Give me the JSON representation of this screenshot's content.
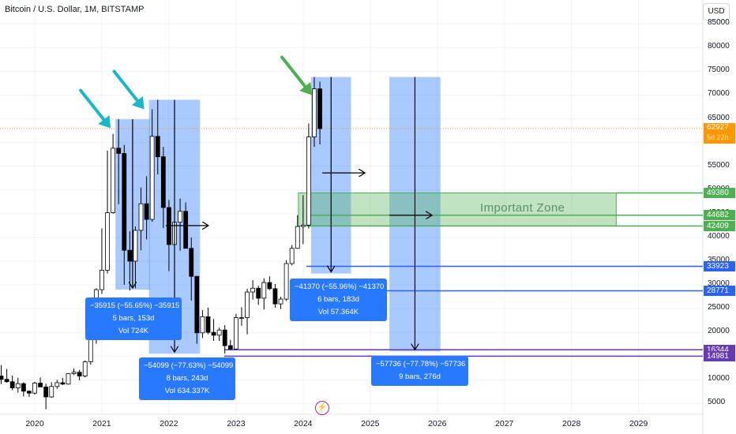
{
  "header": {
    "title": "Bitcoin / U.S. Dollar, 1M, BITSTAMP",
    "currency_button": "USD"
  },
  "chart_data": {
    "type": "candlestick",
    "title": "Bitcoin / U.S. Dollar, 1M, BITSTAMP",
    "xlabel": "",
    "ylabel": "",
    "ylim": [
      0,
      89000
    ],
    "x_ticks": [
      "2020",
      "2021",
      "2022",
      "2023",
      "2024",
      "2025",
      "2026",
      "2027",
      "2028",
      "2029"
    ],
    "y_ticks": [
      5000,
      10000,
      15000,
      20000,
      25000,
      30000,
      35000,
      40000,
      45000,
      50000,
      55000,
      60000,
      65000,
      70000,
      75000,
      80000,
      85000
    ],
    "candle_style": {
      "up_fill": "#ffffff",
      "down_fill": "#000000",
      "outline": "#000000"
    },
    "candles": [
      {
        "date": "2019-05",
        "o": 5300,
        "h": 9100,
        "l": 5200,
        "c": 8600
      },
      {
        "date": "2019-06",
        "o": 8600,
        "h": 13800,
        "l": 7500,
        "c": 10800
      },
      {
        "date": "2019-07",
        "o": 10800,
        "h": 13100,
        "l": 9100,
        "c": 10100
      },
      {
        "date": "2019-08",
        "o": 10100,
        "h": 12300,
        "l": 9400,
        "c": 9600
      },
      {
        "date": "2019-09",
        "o": 9600,
        "h": 10900,
        "l": 7800,
        "c": 8300
      },
      {
        "date": "2019-10",
        "o": 8300,
        "h": 10400,
        "l": 7300,
        "c": 9200
      },
      {
        "date": "2019-11",
        "o": 9200,
        "h": 9500,
        "l": 6500,
        "c": 7600
      },
      {
        "date": "2019-12",
        "o": 7600,
        "h": 7800,
        "l": 6400,
        "c": 7200
      },
      {
        "date": "2020-01",
        "o": 7200,
        "h": 9600,
        "l": 6900,
        "c": 9300
      },
      {
        "date": "2020-02",
        "o": 9300,
        "h": 10500,
        "l": 8500,
        "c": 8500
      },
      {
        "date": "2020-03",
        "o": 8500,
        "h": 9200,
        "l": 3800,
        "c": 6400
      },
      {
        "date": "2020-04",
        "o": 6400,
        "h": 9500,
        "l": 6200,
        "c": 8600
      },
      {
        "date": "2020-05",
        "o": 8600,
        "h": 10000,
        "l": 8100,
        "c": 9400
      },
      {
        "date": "2020-06",
        "o": 9400,
        "h": 10400,
        "l": 8900,
        "c": 9100
      },
      {
        "date": "2020-07",
        "o": 9100,
        "h": 11400,
        "l": 9000,
        "c": 11300
      },
      {
        "date": "2020-08",
        "o": 11300,
        "h": 12400,
        "l": 11000,
        "c": 11600
      },
      {
        "date": "2020-09",
        "o": 11600,
        "h": 12100,
        "l": 9900,
        "c": 10800
      },
      {
        "date": "2020-10",
        "o": 10800,
        "h": 14100,
        "l": 10500,
        "c": 13800
      },
      {
        "date": "2020-11",
        "o": 13800,
        "h": 19900,
        "l": 13200,
        "c": 19700
      },
      {
        "date": "2020-12",
        "o": 19700,
        "h": 29300,
        "l": 17600,
        "c": 29000
      },
      {
        "date": "2021-01",
        "o": 29000,
        "h": 41900,
        "l": 28100,
        "c": 33100
      },
      {
        "date": "2021-02",
        "o": 33100,
        "h": 58300,
        "l": 32400,
        "c": 45200
      },
      {
        "date": "2021-03",
        "o": 45200,
        "h": 61800,
        "l": 45000,
        "c": 58800
      },
      {
        "date": "2021-04",
        "o": 58800,
        "h": 64900,
        "l": 47000,
        "c": 57700
      },
      {
        "date": "2021-05",
        "o": 57700,
        "h": 59500,
        "l": 30000,
        "c": 37300
      },
      {
        "date": "2021-06",
        "o": 37300,
        "h": 41300,
        "l": 28800,
        "c": 35000
      },
      {
        "date": "2021-07",
        "o": 35000,
        "h": 42300,
        "l": 29300,
        "c": 41500
      },
      {
        "date": "2021-08",
        "o": 41500,
        "h": 50500,
        "l": 37300,
        "c": 47100
      },
      {
        "date": "2021-09",
        "o": 47100,
        "h": 52900,
        "l": 39600,
        "c": 43800
      },
      {
        "date": "2021-10",
        "o": 43800,
        "h": 67000,
        "l": 43300,
        "c": 61300
      },
      {
        "date": "2021-11",
        "o": 61300,
        "h": 69000,
        "l": 53300,
        "c": 57000
      },
      {
        "date": "2021-12",
        "o": 57000,
        "h": 59100,
        "l": 42000,
        "c": 46300
      },
      {
        "date": "2022-01",
        "o": 46300,
        "h": 47900,
        "l": 32900,
        "c": 38500
      },
      {
        "date": "2022-02",
        "o": 38500,
        "h": 45800,
        "l": 34300,
        "c": 43200
      },
      {
        "date": "2022-03",
        "o": 43200,
        "h": 48200,
        "l": 37200,
        "c": 45500
      },
      {
        "date": "2022-04",
        "o": 45500,
        "h": 47400,
        "l": 37700,
        "c": 37700
      },
      {
        "date": "2022-05",
        "o": 37700,
        "h": 40000,
        "l": 26700,
        "c": 31800
      },
      {
        "date": "2022-06",
        "o": 31800,
        "h": 31900,
        "l": 17600,
        "c": 19900
      },
      {
        "date": "2022-07",
        "o": 19900,
        "h": 24700,
        "l": 18800,
        "c": 23300
      },
      {
        "date": "2022-08",
        "o": 23300,
        "h": 25200,
        "l": 19600,
        "c": 20000
      },
      {
        "date": "2022-09",
        "o": 20000,
        "h": 22800,
        "l": 18200,
        "c": 19400
      },
      {
        "date": "2022-10",
        "o": 19400,
        "h": 21000,
        "l": 18200,
        "c": 20500
      },
      {
        "date": "2022-11",
        "o": 20500,
        "h": 21500,
        "l": 15500,
        "c": 17200
      },
      {
        "date": "2022-12",
        "o": 17200,
        "h": 18400,
        "l": 16300,
        "c": 16500
      },
      {
        "date": "2023-01",
        "o": 16500,
        "h": 23900,
        "l": 16500,
        "c": 23100
      },
      {
        "date": "2023-02",
        "o": 23100,
        "h": 25300,
        "l": 21400,
        "c": 23100
      },
      {
        "date": "2023-03",
        "o": 23100,
        "h": 29200,
        "l": 19600,
        "c": 28500
      },
      {
        "date": "2023-04",
        "o": 28500,
        "h": 31000,
        "l": 26900,
        "c": 29300
      },
      {
        "date": "2023-05",
        "o": 29300,
        "h": 29800,
        "l": 25800,
        "c": 27200
      },
      {
        "date": "2023-06",
        "o": 27200,
        "h": 31400,
        "l": 24800,
        "c": 30500
      },
      {
        "date": "2023-07",
        "o": 30500,
        "h": 31800,
        "l": 28900,
        "c": 29200
      },
      {
        "date": "2023-08",
        "o": 29200,
        "h": 30200,
        "l": 25200,
        "c": 26000
      },
      {
        "date": "2023-09",
        "o": 26000,
        "h": 27500,
        "l": 24900,
        "c": 27000
      },
      {
        "date": "2023-10",
        "o": 27000,
        "h": 35200,
        "l": 26600,
        "c": 34500
      },
      {
        "date": "2023-11",
        "o": 34500,
        "h": 38400,
        "l": 34100,
        "c": 37700
      },
      {
        "date": "2023-12",
        "o": 37700,
        "h": 44700,
        "l": 37600,
        "c": 42300
      },
      {
        "date": "2024-01",
        "o": 42300,
        "h": 48900,
        "l": 38600,
        "c": 42600
      },
      {
        "date": "2024-02",
        "o": 42600,
        "h": 64000,
        "l": 41900,
        "c": 61200
      },
      {
        "date": "2024-03",
        "o": 61200,
        "h": 73800,
        "l": 59100,
        "c": 71300
      },
      {
        "date": "2024-04",
        "o": 71300,
        "h": 72800,
        "l": 59600,
        "c": 62927
      }
    ],
    "current_price": {
      "value": 62927,
      "label": "62927",
      "countdown": "5d 22h",
      "color": "#ff9800"
    },
    "horizontal_levels": [
      {
        "value": 49380,
        "label": "49380",
        "color": "#4caf50"
      },
      {
        "value": 44682,
        "label": "44682",
        "color": "#4caf50"
      },
      {
        "value": 42409,
        "label": "42409",
        "color": "#4caf50"
      },
      {
        "value": 33923,
        "label": "33923",
        "color": "#2962ff"
      },
      {
        "value": 28771,
        "label": "28771",
        "color": "#2962ff"
      },
      {
        "value": 16344,
        "label": "16344",
        "color": "#673ab7"
      },
      {
        "value": 14981,
        "label": "14981",
        "color": "#673ab7"
      }
    ],
    "zone": {
      "label": "Important Zone",
      "top": 49380,
      "bottom": 42409,
      "from": "2024-01",
      "to": "2028-09",
      "color": "#a5d6a7"
    },
    "measurements": [
      {
        "from": "2021-04",
        "to": "2021-09",
        "top": 64900,
        "bottom": 29000,
        "line1": "−35915 (−55.65%) −35915",
        "line2": "5 bars, 153d",
        "line3": "Vol 724K"
      },
      {
        "from": "2021-10",
        "to": "2022-06",
        "top": 69000,
        "bottom": 15500,
        "line1": "−54099 (−77.63%) −54099",
        "line2": "8 bars, 243d",
        "line3": "Vol 634.337K"
      },
      {
        "from": "2024-03",
        "to": "2024-09",
        "top": 73800,
        "bottom": 32400,
        "line1": "−41370 (−55.96%) −41370",
        "line2": "6 bars, 183d",
        "line3": "Vol 57.364K"
      },
      {
        "from": "2025-05",
        "to": "2026-01",
        "top": 73800,
        "bottom": 16000,
        "line1": "−57736 (−77.78%) −57736",
        "line2": "9 bars, 276d",
        "line3": ""
      }
    ],
    "right_arrows": [
      {
        "date": "2022-01",
        "value": 42500
      },
      {
        "date": "2024-05",
        "value": 53600
      },
      {
        "date": "2025-05",
        "value": 44682
      }
    ],
    "pointer_arrows": [
      {
        "date": "2021-03",
        "value": 63000,
        "color": "#1ab7c8"
      },
      {
        "date": "2021-09",
        "value": 67000,
        "color": "#1ab7c8"
      },
      {
        "date": "2024-03",
        "value": 70000,
        "color": "#4caf50"
      }
    ]
  }
}
